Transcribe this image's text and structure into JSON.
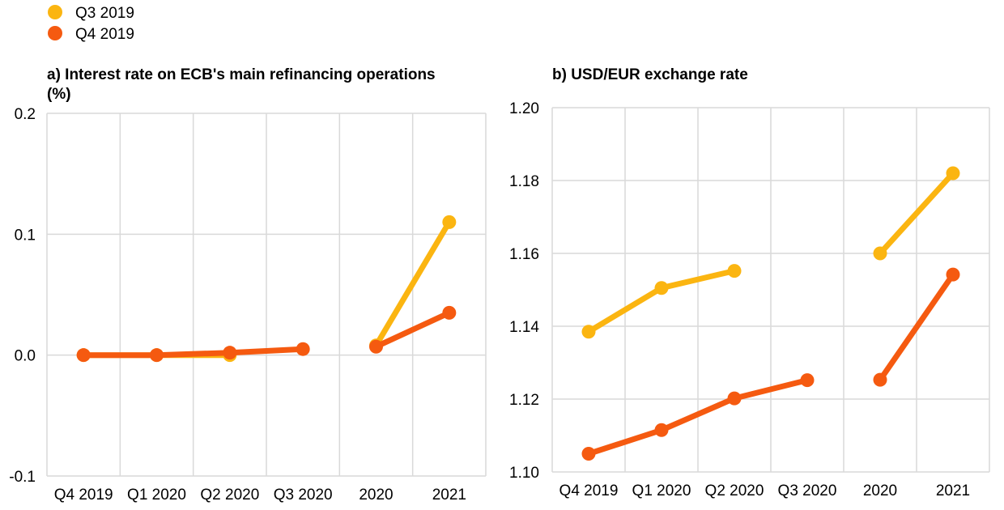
{
  "legend": [
    {
      "name": "Q3 2019",
      "color": "#fbb511"
    },
    {
      "name": "Q4 2019",
      "color": "#f55a10"
    }
  ],
  "chart_data": [
    {
      "type": "line",
      "title_lines": [
        "a) Interest rate on ECB's main refinancing operations",
        "(%)"
      ],
      "categories": [
        "Q4 2019",
        "Q1 2020",
        "Q2 2020",
        "Q3 2020",
        "2020",
        "2021"
      ],
      "ylim": [
        -0.1,
        0.2
      ],
      "yticks": [
        -0.1,
        0.0,
        0.1,
        0.2
      ],
      "ytick_labels": [
        "-0.1",
        "0.0",
        "0.1",
        "0.2"
      ],
      "segments": [
        [
          0,
          3
        ],
        [
          4,
          5
        ]
      ],
      "series": [
        {
          "name": "Q3 2019",
          "color": "#fbb511",
          "values": [
            0.0,
            0.0,
            0.0,
            null,
            0.008,
            0.11
          ]
        },
        {
          "name": "Q4 2019",
          "color": "#f55a10",
          "values": [
            0.0,
            0.0,
            0.002,
            0.005,
            0.007,
            0.035
          ]
        }
      ]
    },
    {
      "type": "line",
      "title_lines": [
        "b) USD/EUR exchange rate"
      ],
      "categories": [
        "Q4 2019",
        "Q1 2020",
        "Q2 2020",
        "Q3 2020",
        "2020",
        "2021"
      ],
      "ylim": [
        1.1,
        1.2
      ],
      "yticks": [
        1.1,
        1.12,
        1.14,
        1.16,
        1.18,
        1.2
      ],
      "ytick_labels": [
        "1.10",
        "1.12",
        "1.14",
        "1.16",
        "1.18",
        "1.20"
      ],
      "segments": [
        [
          0,
          3
        ],
        [
          4,
          5
        ]
      ],
      "series": [
        {
          "name": "Q3 2019",
          "color": "#fbb511",
          "values": [
            1.1385,
            1.1505,
            1.1552,
            null,
            1.16,
            1.182
          ]
        },
        {
          "name": "Q4 2019",
          "color": "#f55a10",
          "values": [
            1.105,
            1.1115,
            1.1202,
            1.1252,
            1.1253,
            1.1542
          ]
        }
      ]
    }
  ]
}
